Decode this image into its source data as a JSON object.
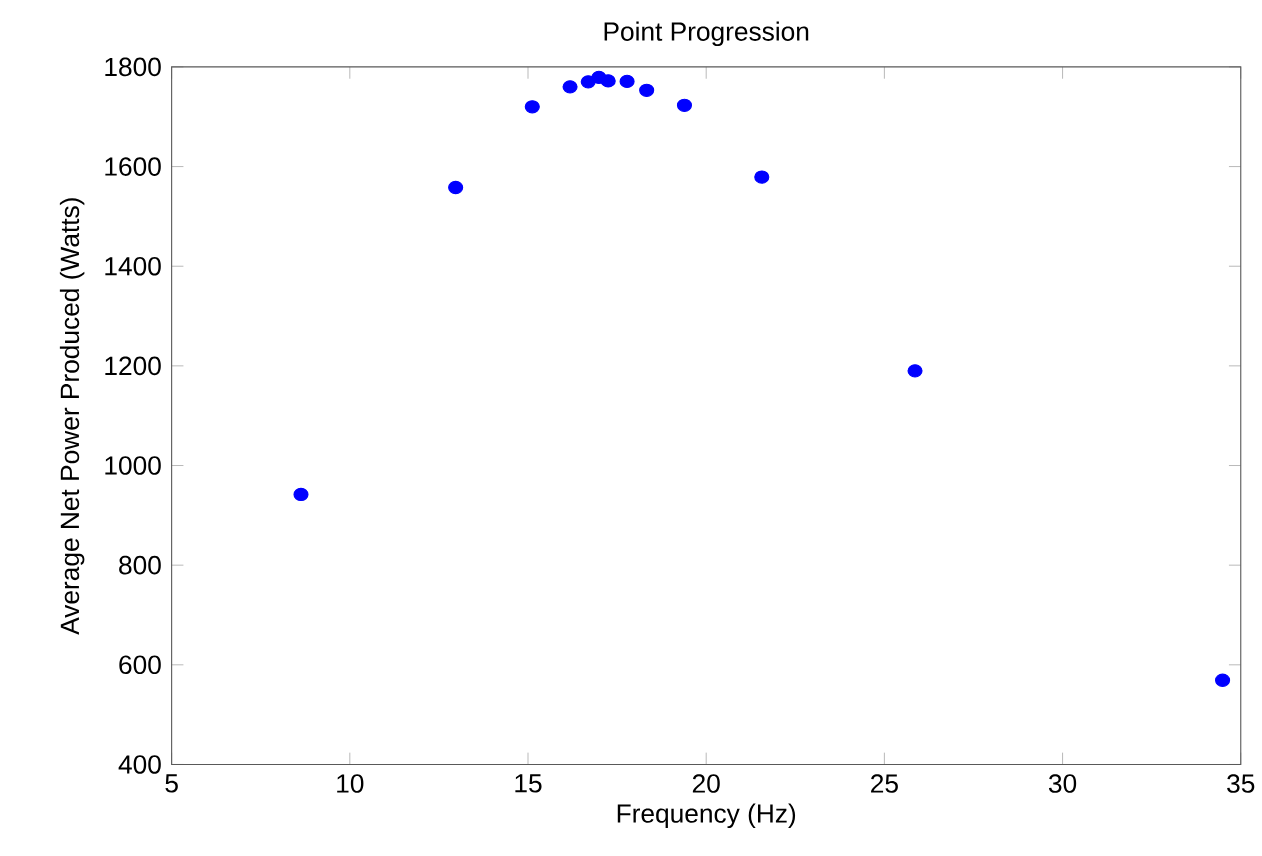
{
  "chart_data": {
    "type": "scatter",
    "title": "Point Progression",
    "xlabel": "Frequency (Hz)",
    "ylabel": "Average Net Power Produced (Watts)",
    "x": [
      8.63,
      12.97,
      15.12,
      16.18,
      16.69,
      16.99,
      17.25,
      17.78,
      18.33,
      19.39,
      21.56,
      25.86,
      34.49
    ],
    "series": [
      {
        "color": "#0000ff",
        "values": [
          942,
          1558,
          1720,
          1760,
          1770,
          1779,
          1772,
          1771,
          1753,
          1723,
          1579,
          1190,
          569
        ]
      }
    ],
    "marker": "circle",
    "xlim": [
      5,
      35
    ],
    "ylim": [
      400,
      1800
    ],
    "xticks": [
      5,
      10,
      15,
      20,
      25,
      30,
      35
    ],
    "yticks": [
      400,
      600,
      800,
      1000,
      1200,
      1400,
      1600,
      1800
    ]
  }
}
